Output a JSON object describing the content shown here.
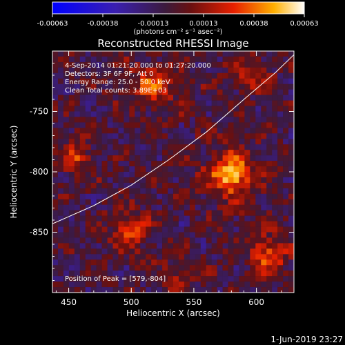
{
  "chart_data": {
    "type": "heatmap",
    "title": "Reconstructed RHESSI Image",
    "xlabel": "Heliocentric X (arcsec)",
    "ylabel": "Heliocentric Y (arcsec)",
    "xlim": [
      437,
      630
    ],
    "ylim": [
      -900,
      -700
    ],
    "x_ticks": [
      450,
      500,
      550,
      600
    ],
    "y_ticks": [
      -750,
      -800,
      -850
    ],
    "colorbar": {
      "min": -0.00063,
      "max": 0.00063,
      "ticks": [
        "-0.00063",
        "-0.00038",
        "-0.00013",
        "0.00013",
        "0.00038",
        "0.00063"
      ],
      "units": "(photons cm⁻² s⁻¹ asec⁻²)"
    },
    "annotations": [
      "4-Sep-2014 01:21:20.000 to 01:27:20.000",
      "Detectors: 3F 6F 9F, Att 0",
      "Energy Range: 25.0 - 50.0 keV",
      "Clean      Total counts: 3.89E+03"
    ],
    "peak_label": "Position of Peak = [579,-804]",
    "peak": [
      579,
      -804
    ],
    "limb_curve": [
      [
        437,
        -843
      ],
      [
        470,
        -828
      ],
      [
        500,
        -811
      ],
      [
        530,
        -790
      ],
      [
        560,
        -767
      ],
      [
        590,
        -740
      ],
      [
        615,
        -718
      ],
      [
        630,
        -703
      ]
    ],
    "sources": [
      {
        "x": 580,
        "y": -802,
        "amp": 0.00063,
        "sigma": 16
      },
      {
        "x": 500,
        "y": -848,
        "amp": 0.00036,
        "sigma": 14
      },
      {
        "x": 518,
        "y": -728,
        "amp": 0.0004,
        "sigma": 16
      },
      {
        "x": 455,
        "y": -788,
        "amp": 0.0003,
        "sigma": 13
      },
      {
        "x": 610,
        "y": -868,
        "amp": 0.00042,
        "sigma": 14
      },
      {
        "x": 595,
        "y": -720,
        "amp": 0.00028,
        "sigma": 12
      },
      {
        "x": 540,
        "y": -885,
        "amp": 0.00026,
        "sigma": 11
      }
    ]
  },
  "timestamp": "1-Jun-2019 23:27"
}
